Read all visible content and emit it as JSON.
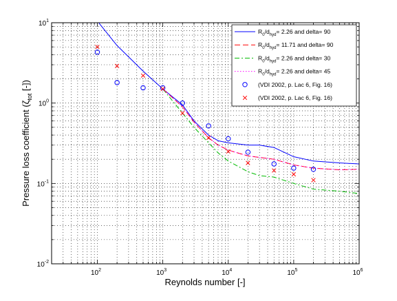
{
  "chart_data": {
    "type": "line",
    "xscale": "log",
    "yscale": "log",
    "xlim": [
      20,
      1000000
    ],
    "ylim": [
      0.01,
      10
    ],
    "grid": true,
    "xlabel": "Reynolds number [-]",
    "ylabel_main": "Pressure loss coefficient (",
    "ylabel_symbol": "ζ",
    "ylabel_sub": "tot",
    "ylabel_end": " [-])",
    "x_ticks": [
      {
        "value": 100,
        "base": "10",
        "exp": "2"
      },
      {
        "value": 1000,
        "base": "10",
        "exp": "3"
      },
      {
        "value": 10000,
        "base": "10",
        "exp": "4"
      },
      {
        "value": 100000,
        "base": "10",
        "exp": "5"
      },
      {
        "value": 1000000,
        "base": "10",
        "exp": "6"
      }
    ],
    "y_ticks": [
      {
        "value": 0.01,
        "base": "10",
        "exp": "-2"
      },
      {
        "value": 0.1,
        "base": "10",
        "exp": "-1"
      },
      {
        "value": 1,
        "base": "10",
        "exp": "0"
      },
      {
        "value": 10,
        "base": "10",
        "exp": "1"
      }
    ],
    "legend_position": "top-right",
    "series": [
      {
        "kind": "line",
        "color": "#0000ff",
        "dash": "",
        "label": {
          "r": "R",
          "r_sub": "0",
          "slash": "/d",
          "d_sub": "hyd",
          "rest": "= 2.26 and delta= 90"
        },
        "x": [
          100,
          200,
          500,
          1000,
          2000,
          3000,
          5000,
          7000,
          10000,
          20000,
          30000,
          50000,
          100000,
          200000,
          500000,
          1000000
        ],
        "y": [
          10.5,
          5.2,
          2.5,
          1.5,
          0.95,
          0.6,
          0.4,
          0.34,
          0.32,
          0.3,
          0.3,
          0.28,
          0.215,
          0.19,
          0.18,
          0.175
        ]
      },
      {
        "kind": "line",
        "color": "#ff0000",
        "dash": "8,4",
        "label": {
          "r": "R",
          "r_sub": "0",
          "slash": "/d",
          "d_sub": "hyd",
          "rest": "= 11.71 and delta= 90"
        },
        "x": [
          1000,
          2000,
          3000,
          5000,
          7000,
          10000,
          20000,
          50000,
          100000,
          200000,
          500000,
          1000000
        ],
        "y": [
          1.5,
          0.9,
          0.58,
          0.37,
          0.3,
          0.26,
          0.22,
          0.2,
          0.17,
          0.155,
          0.148,
          0.15
        ]
      },
      {
        "kind": "line",
        "color": "#00bb00",
        "dash": "7,3,2,3",
        "label": {
          "r": "R",
          "r_sub": "0",
          "slash": "/d",
          "d_sub": "hyd",
          "rest": "= 2.26 and delta= 30"
        },
        "x": [
          1000,
          2000,
          3000,
          5000,
          7000,
          10000,
          20000,
          30000,
          50000,
          100000,
          200000,
          500000,
          1000000
        ],
        "y": [
          1.5,
          0.75,
          0.5,
          0.32,
          0.24,
          0.19,
          0.14,
          0.125,
          0.12,
          0.1,
          0.085,
          0.08,
          0.075
        ]
      },
      {
        "kind": "line",
        "color": "#ff00ff",
        "dash": "1.5,2.5",
        "label": {
          "r": "R",
          "r_sub": "0",
          "slash": "/d",
          "d_sub": "hyd",
          "rest": "= 2.26 and delta= 45"
        },
        "x": [
          1000,
          2000,
          3000,
          5000,
          7000,
          10000,
          20000,
          50000,
          100000,
          200000,
          500000,
          1000000
        ],
        "y": [
          1.5,
          0.9,
          0.58,
          0.37,
          0.3,
          0.26,
          0.22,
          0.2,
          0.17,
          0.155,
          0.148,
          0.15
        ]
      },
      {
        "kind": "marker",
        "marker": "circle",
        "color": "#0000ff",
        "label": {
          "text": "(VDI 2002, p. Lac 6, Fig. 16)"
        },
        "x": [
          100,
          200,
          500,
          1000,
          2000,
          5000,
          10000,
          20000,
          50000,
          100000,
          200000
        ],
        "y": [
          4.3,
          1.8,
          1.55,
          1.55,
          1.0,
          0.52,
          0.36,
          0.245,
          0.175,
          0.155,
          0.15
        ]
      },
      {
        "kind": "marker",
        "marker": "x",
        "color": "#ff0000",
        "label": {
          "text": "(VDI 2002, p. Lac 6, Fig. 16)"
        },
        "x": [
          100,
          200,
          500,
          1000,
          2000,
          5000,
          10000,
          20000,
          50000,
          100000,
          200000
        ],
        "y": [
          5.0,
          2.9,
          2.2,
          1.5,
          0.75,
          0.37,
          0.25,
          0.18,
          0.145,
          0.13,
          0.11
        ]
      }
    ]
  }
}
